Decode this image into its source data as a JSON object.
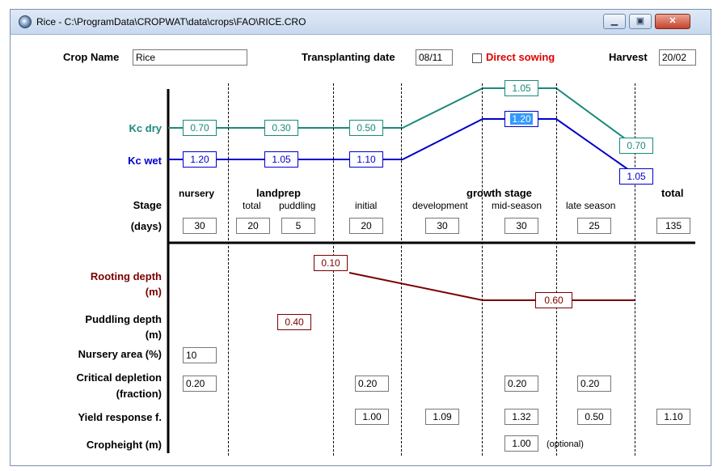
{
  "window": {
    "title": "Rice - C:\\ProgramData\\CROPWAT\\data\\crops\\FAO\\RICE.CRO"
  },
  "header": {
    "crop_name_label": "Crop Name",
    "crop_name_value": "Rice",
    "transplanting_label": "Transplanting date",
    "transplanting_value": "08/11",
    "direct_sowing_label": "Direct sowing",
    "harvest_label": "Harvest",
    "harvest_value": "20/02"
  },
  "kc": {
    "dry_label": "Kc dry",
    "wet_label": "Kc wet",
    "dry_values": [
      "0.70",
      "0.30",
      "0.50",
      "1.05",
      "0.70"
    ],
    "wet_values": [
      "1.20",
      "1.05",
      "1.10",
      "1.20",
      "1.05"
    ]
  },
  "stages": {
    "stage_label": "Stage",
    "days_label": "(days)",
    "nursery": "nursery",
    "landprep": "landprep",
    "total_sub": "total",
    "puddling": "puddling",
    "initial": "initial",
    "development": "development",
    "growth_stage": "growth stage",
    "mid_season": "mid-season",
    "late_season": "late season",
    "total": "total",
    "days": [
      "30",
      "20",
      "5",
      "20",
      "30",
      "30",
      "25",
      "135"
    ]
  },
  "rooting": {
    "label": "Rooting depth",
    "unit": "(m)",
    "values": [
      "0.10",
      "0.60"
    ]
  },
  "puddling_depth": {
    "label": "Puddling depth",
    "unit": "(m)",
    "value": "0.40"
  },
  "nursery_area": {
    "label": "Nursery area (%)",
    "value": "10"
  },
  "critical_depletion": {
    "label": "Critical depletion",
    "unit": "(fraction)",
    "values": [
      "0.20",
      "0.20",
      "0.20",
      "0.20"
    ]
  },
  "yield_response": {
    "label": "Yield response f.",
    "values": [
      "1.00",
      "1.09",
      "1.32",
      "0.50",
      "1.10"
    ]
  },
  "cropheight": {
    "label": "Cropheight (m)",
    "value": "1.00",
    "note": "(optional)"
  },
  "colors": {
    "kc_dry": "#1a8a7a",
    "kc_wet": "#0000cc",
    "rooting": "#7a0000",
    "direct_sowing": "#e00000"
  }
}
